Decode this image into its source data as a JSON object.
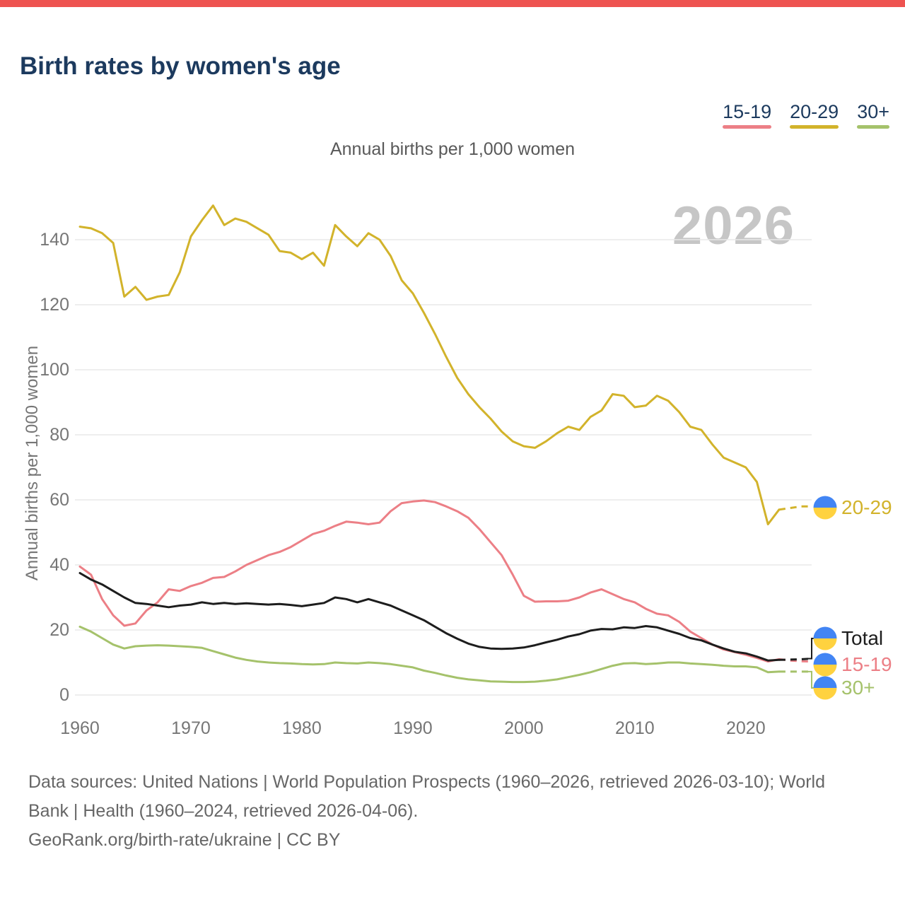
{
  "colors": {
    "accent_bar": "#ee5350",
    "title_text": "#1c3a5e",
    "subtitle_text": "#595959",
    "axis_text": "#767676",
    "grid_line": "#e9e9e9",
    "watermark_text": "#c6c6c6",
    "footer_text": "#666666",
    "flag_blue": "#4285f4",
    "flag_yellow": "#ffd23f"
  },
  "header": {
    "title": "Birth rates by women's age"
  },
  "legend": {
    "items": [
      {
        "label": "15-19",
        "color": "#ec7f86"
      },
      {
        "label": "20-29",
        "color": "#d2b32b"
      },
      {
        "label": "30+",
        "color": "#a5c26b"
      }
    ]
  },
  "chart": {
    "subtitle": "Annual births per 1,000 women",
    "watermark": "2026",
    "y_axis_title": "Annual births per 1,000 women",
    "y_ticks": [
      0,
      20,
      40,
      60,
      80,
      100,
      120,
      140
    ],
    "x_ticks": [
      1960,
      1970,
      1980,
      1990,
      2000,
      2010,
      2020
    ]
  },
  "chart_data": {
    "type": "line",
    "title": "Birth rates by women's age",
    "subtitle": "Annual births per 1,000 women",
    "xlabel": "",
    "ylabel": "Annual births per 1,000 women",
    "ylim": [
      0,
      155
    ],
    "grid": "horizontal-only",
    "legend_position": "top-right",
    "projection_start": 2023,
    "years": [
      1960,
      1961,
      1962,
      1963,
      1964,
      1965,
      1966,
      1967,
      1968,
      1969,
      1970,
      1971,
      1972,
      1973,
      1974,
      1975,
      1976,
      1977,
      1978,
      1979,
      1980,
      1981,
      1982,
      1983,
      1984,
      1985,
      1986,
      1987,
      1988,
      1989,
      1990,
      1991,
      1992,
      1993,
      1994,
      1995,
      1996,
      1997,
      1998,
      1999,
      2000,
      2001,
      2002,
      2003,
      2004,
      2005,
      2006,
      2007,
      2008,
      2009,
      2010,
      2011,
      2012,
      2013,
      2014,
      2015,
      2016,
      2017,
      2018,
      2019,
      2020,
      2021,
      2022,
      2023,
      2024,
      2025,
      2026
    ],
    "series": [
      {
        "name": "20-29",
        "color": "#d2b32b",
        "values": [
          144,
          143.5,
          142,
          139,
          122.5,
          125.5,
          121.5,
          122.5,
          123,
          130,
          141,
          146,
          150.5,
          144.5,
          146.5,
          145.5,
          143.5,
          141.5,
          136.5,
          136,
          134,
          136,
          132,
          144.5,
          141,
          138,
          142,
          140,
          135,
          127.5,
          123.5,
          117.5,
          111,
          104,
          97.5,
          92.5,
          88.5,
          85,
          81,
          78,
          76.5,
          76,
          78,
          80.5,
          82.5,
          81.5,
          85.5,
          87.5,
          92.5,
          92,
          88.5,
          89,
          92,
          90.5,
          87,
          82.5,
          81.5,
          77,
          73,
          71.5,
          70,
          65.5,
          52.5,
          57,
          57.5,
          58,
          58
        ]
      },
      {
        "name": "15-19",
        "color": "#ec7f86",
        "values": [
          39.5,
          37,
          29.5,
          24.5,
          21.3,
          22,
          26,
          28.5,
          32.5,
          32,
          33.5,
          34.5,
          36,
          36.3,
          38,
          40,
          41.5,
          43,
          44,
          45.5,
          47.5,
          49.5,
          50.5,
          52,
          53.3,
          53,
          52.5,
          53,
          56.5,
          59,
          59.5,
          59.8,
          59.3,
          58,
          56.5,
          54.5,
          51,
          47,
          43,
          37,
          30.5,
          28.7,
          28.8,
          28.8,
          29,
          30,
          31.5,
          32.5,
          31,
          29.5,
          28.5,
          26.5,
          25,
          24.5,
          22.5,
          19.5,
          17.5,
          15.5,
          14,
          13.2,
          12.4,
          11.4,
          10.3,
          11,
          10.6,
          10.4,
          10.3
        ]
      },
      {
        "name": "Total",
        "color": "#1d1d1d",
        "values": [
          37.5,
          35.5,
          34,
          32,
          30,
          28.3,
          28,
          27.5,
          27,
          27.5,
          27.8,
          28.5,
          28,
          28.3,
          28,
          28.2,
          28,
          27.8,
          28,
          27.7,
          27.3,
          27.8,
          28.3,
          30,
          29.5,
          28.5,
          29.5,
          28.5,
          27.5,
          26,
          24.5,
          23,
          21,
          19,
          17.3,
          15.8,
          14.8,
          14.3,
          14.2,
          14.3,
          14.6,
          15.3,
          16.2,
          17,
          18,
          18.7,
          19.8,
          20.3,
          20.2,
          20.8,
          20.6,
          21.2,
          20.8,
          19.8,
          18.8,
          17.5,
          16.8,
          15.5,
          14.3,
          13.3,
          12.8,
          11.8,
          10.6,
          10.8,
          10.9,
          11,
          11.2
        ]
      },
      {
        "name": "30+",
        "color": "#a5c26b",
        "values": [
          21,
          19.5,
          17.5,
          15.5,
          14.3,
          15,
          15.2,
          15.3,
          15.2,
          15,
          14.8,
          14.5,
          13.5,
          12.5,
          11.5,
          10.8,
          10.3,
          10,
          9.8,
          9.7,
          9.5,
          9.4,
          9.5,
          10,
          9.8,
          9.7,
          10,
          9.8,
          9.5,
          9,
          8.5,
          7.5,
          6.8,
          6,
          5.3,
          4.8,
          4.5,
          4.2,
          4.1,
          4,
          4,
          4.1,
          4.4,
          4.8,
          5.5,
          6.2,
          7,
          8,
          9,
          9.7,
          9.8,
          9.5,
          9.7,
          10,
          10,
          9.7,
          9.5,
          9.3,
          9,
          8.8,
          8.8,
          8.5,
          7,
          7.2,
          7.2,
          7.2,
          7.2
        ]
      }
    ]
  },
  "footer": {
    "lines": [
      "Data sources: United Nations | World Population Prospects (1960–2026, retrieved 2026-03-10); World",
      "Bank | Health (1960–2024, retrieved 2026-04-06).",
      "GeoRank.org/birth-rate/ukraine | CC BY"
    ]
  }
}
